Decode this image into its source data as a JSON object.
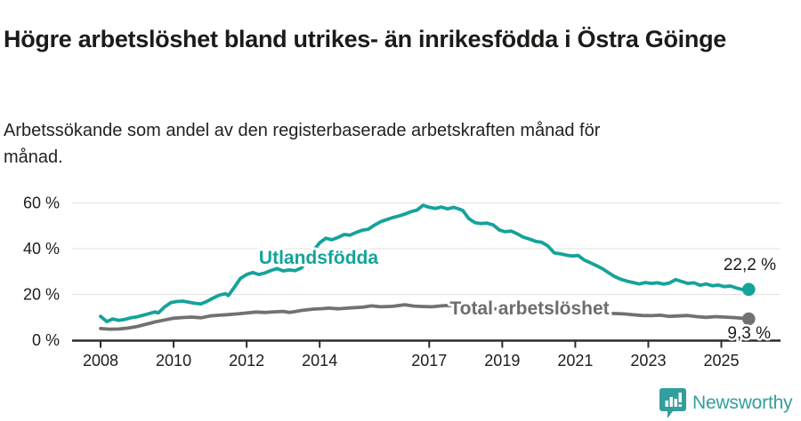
{
  "header": {
    "title": "Högre arbetslöshet bland utrikes- än inrikesfödda i Östra Göinge",
    "subtitle": "Arbetssökande som andel av den registerbaserade arbetskraften månad för månad."
  },
  "logo": {
    "text": "Newsworthy",
    "icon": "bar-chart-speech-bubble-icon",
    "color": "#339e9b"
  },
  "colors": {
    "accent_teal": "#14a39a",
    "line_gray": "#717171",
    "label_gray": "#6d6d6d",
    "grid": "#e2e2e2",
    "axis": "#2b2b2b",
    "text": "#1b1b19"
  },
  "chart_data": {
    "type": "line",
    "title": "Högre arbetslöshet bland utrikes- än inrikesfödda i Östra Göinge",
    "subtitle": "Arbetssökande som andel av den registerbaserade arbetskraften månad för månad.",
    "xlabel": "",
    "ylabel": "",
    "x_range": [
      2008,
      2025.75
    ],
    "ylim": [
      0,
      65
    ],
    "grid": "horizontal",
    "legend_position": "inline-labels",
    "x_tick_labels": [
      "2008",
      "2010",
      "2012",
      "2014",
      "2017",
      "2019",
      "2021",
      "2023",
      "2025"
    ],
    "x_tick_values": [
      2008,
      2010,
      2012,
      2014,
      2017,
      2019,
      2021,
      2023,
      2025
    ],
    "y_tick_labels": [
      "0 %",
      "20 %",
      "40 %",
      "60 %"
    ],
    "y_tick_values": [
      0,
      20,
      40,
      60
    ],
    "end_labels": [
      {
        "series": "Utlandsfödda",
        "text": "22,2 %"
      },
      {
        "series": "Total arbetslöshet",
        "text": "9,3 %"
      }
    ],
    "series": [
      {
        "name": "Utlandsfödda",
        "color": "#14a39a",
        "points": [
          [
            2008.0,
            10.4
          ],
          [
            2008.17,
            8.1
          ],
          [
            2008.33,
            9.3
          ],
          [
            2008.5,
            8.7
          ],
          [
            2008.67,
            9.1
          ],
          [
            2008.83,
            9.8
          ],
          [
            2009.0,
            10.2
          ],
          [
            2009.17,
            10.9
          ],
          [
            2009.33,
            11.6
          ],
          [
            2009.5,
            12.4
          ],
          [
            2009.58,
            11.9
          ],
          [
            2009.75,
            14.5
          ],
          [
            2009.92,
            16.4
          ],
          [
            2010.08,
            16.9
          ],
          [
            2010.25,
            17.1
          ],
          [
            2010.42,
            16.6
          ],
          [
            2010.58,
            16.1
          ],
          [
            2010.75,
            15.9
          ],
          [
            2010.92,
            17.0
          ],
          [
            2011.08,
            18.4
          ],
          [
            2011.25,
            19.7
          ],
          [
            2011.42,
            20.3
          ],
          [
            2011.5,
            19.5
          ],
          [
            2011.67,
            23.3
          ],
          [
            2011.83,
            27.0
          ],
          [
            2012.0,
            28.7
          ],
          [
            2012.17,
            29.6
          ],
          [
            2012.33,
            28.7
          ],
          [
            2012.5,
            29.4
          ],
          [
            2012.67,
            30.5
          ],
          [
            2012.83,
            31.3
          ],
          [
            2013.0,
            30.3
          ],
          [
            2013.17,
            30.7
          ],
          [
            2013.33,
            30.4
          ],
          [
            2013.5,
            31.6
          ],
          [
            2013.67,
            35.2
          ],
          [
            2013.83,
            39.2
          ],
          [
            2014.0,
            42.6
          ],
          [
            2014.17,
            44.6
          ],
          [
            2014.33,
            43.9
          ],
          [
            2014.5,
            44.9
          ],
          [
            2014.67,
            46.2
          ],
          [
            2014.83,
            45.9
          ],
          [
            2015.0,
            47.1
          ],
          [
            2015.17,
            48.1
          ],
          [
            2015.33,
            48.5
          ],
          [
            2015.5,
            50.3
          ],
          [
            2015.67,
            51.8
          ],
          [
            2015.83,
            52.7
          ],
          [
            2016.0,
            53.6
          ],
          [
            2016.17,
            54.3
          ],
          [
            2016.33,
            55.1
          ],
          [
            2016.5,
            56.2
          ],
          [
            2016.67,
            56.9
          ],
          [
            2016.83,
            59.0
          ],
          [
            2017.0,
            58.1
          ],
          [
            2017.17,
            57.6
          ],
          [
            2017.33,
            58.2
          ],
          [
            2017.5,
            57.4
          ],
          [
            2017.67,
            58.1
          ],
          [
            2017.83,
            57.3
          ],
          [
            2017.92,
            56.7
          ],
          [
            2018.08,
            53.2
          ],
          [
            2018.25,
            51.4
          ],
          [
            2018.42,
            51.0
          ],
          [
            2018.58,
            51.2
          ],
          [
            2018.75,
            50.4
          ],
          [
            2018.92,
            48.2
          ],
          [
            2019.08,
            47.4
          ],
          [
            2019.25,
            47.7
          ],
          [
            2019.42,
            46.4
          ],
          [
            2019.58,
            45.0
          ],
          [
            2019.75,
            44.2
          ],
          [
            2019.92,
            43.2
          ],
          [
            2020.08,
            42.8
          ],
          [
            2020.25,
            41.2
          ],
          [
            2020.42,
            38.2
          ],
          [
            2020.58,
            37.8
          ],
          [
            2020.75,
            37.2
          ],
          [
            2020.92,
            36.8
          ],
          [
            2021.08,
            37.0
          ],
          [
            2021.25,
            35.0
          ],
          [
            2021.42,
            33.8
          ],
          [
            2021.58,
            32.6
          ],
          [
            2021.75,
            31.2
          ],
          [
            2021.92,
            29.4
          ],
          [
            2022.08,
            27.8
          ],
          [
            2022.25,
            26.6
          ],
          [
            2022.42,
            25.8
          ],
          [
            2022.58,
            25.2
          ],
          [
            2022.75,
            24.6
          ],
          [
            2022.92,
            25.2
          ],
          [
            2023.08,
            24.8
          ],
          [
            2023.25,
            25.1
          ],
          [
            2023.42,
            24.5
          ],
          [
            2023.58,
            25.0
          ],
          [
            2023.75,
            26.5
          ],
          [
            2023.92,
            25.6
          ],
          [
            2024.08,
            24.8
          ],
          [
            2024.25,
            25.1
          ],
          [
            2024.42,
            24.0
          ],
          [
            2024.58,
            24.6
          ],
          [
            2024.75,
            23.8
          ],
          [
            2024.92,
            24.1
          ],
          [
            2025.08,
            23.4
          ],
          [
            2025.25,
            23.7
          ],
          [
            2025.42,
            22.8
          ],
          [
            2025.58,
            22.1
          ],
          [
            2025.75,
            22.2
          ]
        ]
      },
      {
        "name": "Total arbetslöshet",
        "color": "#717171",
        "points": [
          [
            2008.0,
            5.1
          ],
          [
            2008.25,
            4.8
          ],
          [
            2008.5,
            4.9
          ],
          [
            2008.75,
            5.3
          ],
          [
            2009.0,
            6.0
          ],
          [
            2009.25,
            7.0
          ],
          [
            2009.5,
            8.0
          ],
          [
            2009.75,
            8.8
          ],
          [
            2010.0,
            9.6
          ],
          [
            2010.25,
            9.9
          ],
          [
            2010.5,
            10.1
          ],
          [
            2010.75,
            9.8
          ],
          [
            2011.0,
            10.6
          ],
          [
            2011.25,
            10.9
          ],
          [
            2011.5,
            11.2
          ],
          [
            2011.75,
            11.5
          ],
          [
            2012.0,
            11.9
          ],
          [
            2012.25,
            12.3
          ],
          [
            2012.5,
            12.1
          ],
          [
            2012.75,
            12.4
          ],
          [
            2013.0,
            12.6
          ],
          [
            2013.17,
            12.1
          ],
          [
            2013.33,
            12.5
          ],
          [
            2013.5,
            13.0
          ],
          [
            2013.83,
            13.6
          ],
          [
            2014.08,
            13.8
          ],
          [
            2014.25,
            14.0
          ],
          [
            2014.5,
            13.7
          ],
          [
            2014.83,
            14.1
          ],
          [
            2015.17,
            14.4
          ],
          [
            2015.42,
            15.0
          ],
          [
            2015.67,
            14.6
          ],
          [
            2016.0,
            14.8
          ],
          [
            2016.33,
            15.5
          ],
          [
            2016.58,
            14.9
          ],
          [
            2016.83,
            14.7
          ],
          [
            2017.08,
            14.6
          ],
          [
            2017.33,
            15.0
          ],
          [
            2017.5,
            15.2
          ],
          [
            2017.75,
            14.9
          ],
          [
            2018.0,
            14.5
          ],
          [
            2018.25,
            14.2
          ],
          [
            2018.5,
            14.0
          ],
          [
            2018.75,
            13.7
          ],
          [
            2019.0,
            13.5
          ],
          [
            2019.25,
            13.2
          ],
          [
            2019.5,
            13.0
          ],
          [
            2019.75,
            12.8
          ],
          [
            2020.0,
            13.2
          ],
          [
            2020.25,
            13.3
          ],
          [
            2020.5,
            12.9
          ],
          [
            2020.75,
            12.6
          ],
          [
            2021.0,
            12.4
          ],
          [
            2021.25,
            12.2
          ],
          [
            2021.5,
            12.0
          ],
          [
            2021.75,
            11.8
          ],
          [
            2022.0,
            11.7
          ],
          [
            2022.33,
            11.5
          ],
          [
            2022.58,
            11.1
          ],
          [
            2022.83,
            10.8
          ],
          [
            2023.08,
            10.7
          ],
          [
            2023.33,
            10.9
          ],
          [
            2023.58,
            10.4
          ],
          [
            2023.83,
            10.6
          ],
          [
            2024.08,
            10.8
          ],
          [
            2024.33,
            10.3
          ],
          [
            2024.58,
            10.0
          ],
          [
            2024.83,
            10.3
          ],
          [
            2025.08,
            10.1
          ],
          [
            2025.33,
            9.9
          ],
          [
            2025.58,
            9.6
          ],
          [
            2025.75,
            9.3
          ]
        ]
      }
    ]
  }
}
